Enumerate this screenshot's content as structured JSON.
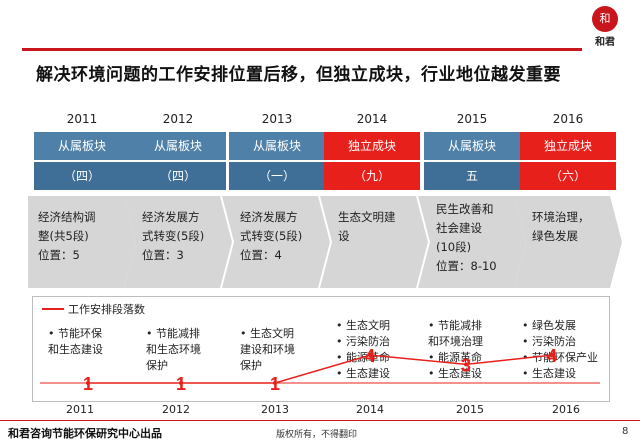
{
  "logo": {
    "glyph": "和",
    "text": "和君"
  },
  "title": "解决环境问题的工作安排位置后移，但独立成块，行业地位越发重要",
  "columns": [
    {
      "year": "2011",
      "status": "从属板块",
      "rank": "（四）",
      "desc": [
        "经济结构调",
        "整(共5段)",
        "位置：5"
      ],
      "status_color": "blue"
    },
    {
      "year": "2012",
      "status": "从属板块",
      "rank": "（四）",
      "desc": [
        "经济发展方",
        "式转变(5段)",
        "位置：3"
      ],
      "status_color": "blue"
    },
    {
      "year": "2013",
      "status": "从属板块",
      "rank": "（一）",
      "desc": [
        "经济发展方",
        "式转变(5段)",
        "位置：4"
      ],
      "status_color": "blue"
    },
    {
      "year": "2014",
      "status": "独立成块",
      "rank": "（九）",
      "desc": [
        "生态文明建",
        "设"
      ],
      "status_color": "red"
    },
    {
      "year": "2015",
      "status": "从属板块",
      "rank": "五",
      "desc": [
        "民生改善和",
        "社会建设",
        "(10段)",
        "位置：8-10"
      ],
      "status_color": "blue"
    },
    {
      "year": "2016",
      "status": "独立成块",
      "rank": "（六）",
      "desc": [
        "环境治理，",
        "绿色发展"
      ],
      "status_color": "red"
    }
  ],
  "chart_data": {
    "type": "line",
    "legend": "工作安排段落数",
    "categories": [
      "2011",
      "2012",
      "2013",
      "2014",
      "2015",
      "2016"
    ],
    "series": [
      {
        "name": "工作安排段落数",
        "values": [
          1,
          1,
          1,
          4,
          3,
          4
        ]
      }
    ],
    "data_labels": [
      "1",
      "1",
      "1",
      "4",
      "3",
      "4"
    ],
    "line_color": "#e8201c"
  },
  "bullets": [
    [
      "• 节能环保",
      "和生态建设"
    ],
    [
      "• 节能减排",
      "和生态环境",
      "保护"
    ],
    [
      "• 生态文明",
      "建设和环境",
      "保护"
    ],
    [
      "• 生态文明",
      "• 污染防治",
      "• 能源革命",
      "• 生态建设"
    ],
    [
      "• 节能减排",
      "和环境治理",
      "• 能源革命",
      "• 生态建设"
    ],
    [
      "• 绿色发展",
      "• 污染防治",
      "• 节能环保产业",
      "• 生态建设"
    ]
  ],
  "footer": {
    "left": "和君咨询节能环保研究中心出品",
    "middle": "版权所有，不得翻印",
    "page": "8"
  }
}
